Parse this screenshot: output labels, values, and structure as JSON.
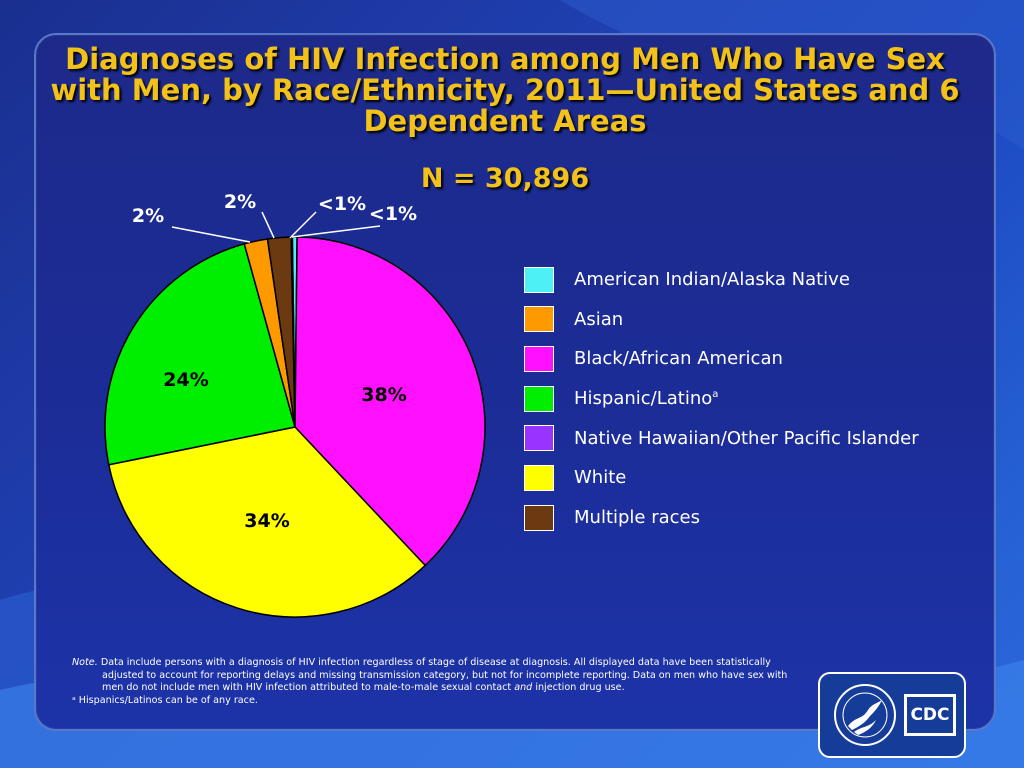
{
  "title": "Diagnoses of HIV Infection among Men Who Have Sex with Men, by Race/Ethnicity, 2011—United States and 6 Dependent Areas",
  "subtitle": "N = 30,896",
  "chart_data": {
    "type": "pie",
    "title": "Diagnoses of HIV Infection among Men Who Have Sex with Men, by Race/Ethnicity, 2011—United States and 6 Dependent Areas",
    "subtitle": "N = 30,896",
    "slices": [
      {
        "name": "American Indian/Alaska Native",
        "value": 0.4,
        "label": "<1%",
        "color": "#4df0f5"
      },
      {
        "name": "Black/African American",
        "value": 38,
        "label": "38%",
        "color": "#ff10ff"
      },
      {
        "name": "White",
        "value": 34,
        "label": "34%",
        "color": "#ffff00"
      },
      {
        "name": "Hispanic/Latino",
        "value": 24,
        "label": "24%",
        "color": "#00ee00"
      },
      {
        "name": "Asian",
        "value": 2,
        "label": "2%",
        "color": "#ff9900"
      },
      {
        "name": "Multiple races",
        "value": 2,
        "label": "2%",
        "color": "#6b3a10"
      },
      {
        "name": "Native Hawaiian/Other Pacific Islander",
        "value": 0.1,
        "label": "<1%",
        "color": "#9933ff"
      }
    ],
    "legend_placement": "right"
  },
  "legend": [
    {
      "label": "American Indian/Alaska Native",
      "color": "#4df0f5",
      "sup": ""
    },
    {
      "label": "Asian",
      "color": "#ff9900",
      "sup": ""
    },
    {
      "label": "Black/African American",
      "color": "#ff10ff",
      "sup": ""
    },
    {
      "label": "Hispanic/Latino",
      "color": "#00ee00",
      "sup": "a"
    },
    {
      "label": "Native Hawaiian/Other Pacific Islander",
      "color": "#9933ff",
      "sup": ""
    },
    {
      "label": "White",
      "color": "#ffff00",
      "sup": ""
    },
    {
      "label": "Multiple races",
      "color": "#6b3a10",
      "sup": ""
    }
  ],
  "note": {
    "label": "Note.",
    "text_part1": " Data include persons with a diagnosis of HIV infection regardless of stage of disease at diagnosis. All displayed data have been statistically adjusted to account for reporting delays and missing transmission category, but not for incomplete reporting. Data on men who have sex with men do not include men with HIV infection attributed to male-to-male sexual contact ",
    "italic_word": "and",
    "text_part2": " injection drug use.",
    "footnote": "ᵃ Hispanics/Latinos can be of any race."
  },
  "logo": {
    "cdc_text": "CDC",
    "seal_icon": "hhs-seal-icon"
  }
}
